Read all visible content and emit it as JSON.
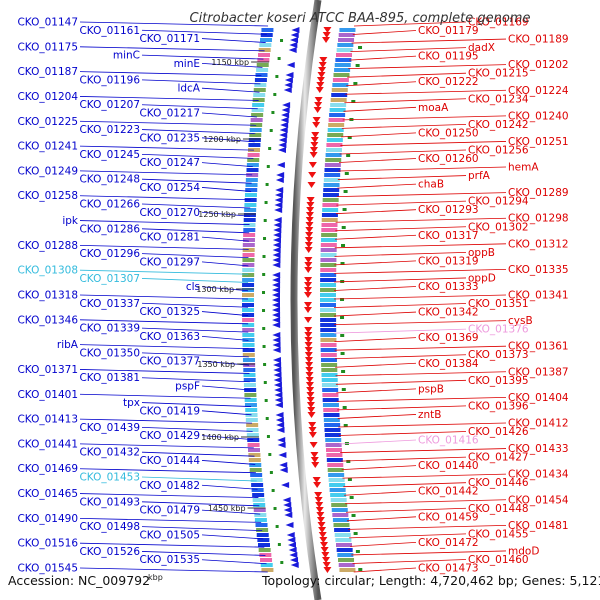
{
  "header": {
    "title": "Citrobacter koseri ATCC BAA-895, complete genome"
  },
  "footer": {
    "accession": "Accession: NC_009792",
    "topology": "Topology: circular; Length: 4,720,462 bp; Genes: 5,121",
    "kbp_unit": "kbp"
  },
  "colors": {
    "left_genes": "#0000cc",
    "right_genes": "#dd0000",
    "left_highlight": "#33bbdd",
    "right_highlight": "#ee99dd",
    "backbone": "#666666"
  },
  "scale": {
    "ticks": [
      {
        "label": "1150 kbp"
      },
      {
        "label": "1200 kbp"
      },
      {
        "label": "1250 kbp"
      },
      {
        "label": "1300 kbp"
      },
      {
        "label": "1350 kbp"
      },
      {
        "label": "1400 kbp"
      },
      {
        "label": "1450 kbp"
      }
    ]
  },
  "left_labels": [
    {
      "text": "CKO_01147",
      "color": "blue"
    },
    {
      "text": "CKO_01161",
      "color": "blue"
    },
    {
      "text": "CKO_01171",
      "color": "blue"
    },
    {
      "text": "CKO_01175",
      "color": "blue"
    },
    {
      "text": "minC",
      "color": "blue"
    },
    {
      "text": "minE",
      "color": "blue"
    },
    {
      "text": "CKO_01187",
      "color": "blue"
    },
    {
      "text": "CKO_01196",
      "color": "blue"
    },
    {
      "text": "ldcA",
      "color": "blue"
    },
    {
      "text": "CKO_01204",
      "color": "blue"
    },
    {
      "text": "CKO_01207",
      "color": "blue"
    },
    {
      "text": "CKO_01217",
      "color": "blue"
    },
    {
      "text": "CKO_01225",
      "color": "blue"
    },
    {
      "text": "CKO_01223",
      "color": "blue"
    },
    {
      "text": "CKO_01235",
      "color": "blue"
    },
    {
      "text": "CKO_01241",
      "color": "blue"
    },
    {
      "text": "CKO_01245",
      "color": "blue"
    },
    {
      "text": "CKO_01247",
      "color": "blue"
    },
    {
      "text": "CKO_01249",
      "color": "blue"
    },
    {
      "text": "CKO_01248",
      "color": "blue"
    },
    {
      "text": "CKO_01254",
      "color": "blue"
    },
    {
      "text": "CKO_01258",
      "color": "blue"
    },
    {
      "text": "CKO_01266",
      "color": "blue"
    },
    {
      "text": "CKO_01270",
      "color": "blue"
    },
    {
      "text": "ipk",
      "color": "blue"
    },
    {
      "text": "CKO_01286",
      "color": "blue"
    },
    {
      "text": "CKO_01281",
      "color": "blue"
    },
    {
      "text": "CKO_01288",
      "color": "blue"
    },
    {
      "text": "CKO_01296",
      "color": "blue"
    },
    {
      "text": "CKO_01297",
      "color": "blue"
    },
    {
      "text": "CKO_01308",
      "color": "cyan"
    },
    {
      "text": "CKO_01307",
      "color": "cyan"
    },
    {
      "text": "cls",
      "color": "blue"
    },
    {
      "text": "CKO_01318",
      "color": "blue"
    },
    {
      "text": "CKO_01337",
      "color": "blue"
    },
    {
      "text": "CKO_01325",
      "color": "blue"
    },
    {
      "text": "CKO_01346",
      "color": "blue"
    },
    {
      "text": "CKO_01339",
      "color": "blue"
    },
    {
      "text": "CKO_01363",
      "color": "blue"
    },
    {
      "text": "ribA",
      "color": "blue"
    },
    {
      "text": "CKO_01350",
      "color": "blue"
    },
    {
      "text": "CKO_01377",
      "color": "blue"
    },
    {
      "text": "CKO_01371",
      "color": "blue"
    },
    {
      "text": "CKO_01381",
      "color": "blue"
    },
    {
      "text": "pspF",
      "color": "blue"
    },
    {
      "text": "CKO_01401",
      "color": "blue"
    },
    {
      "text": "tpx",
      "color": "blue"
    },
    {
      "text": "CKO_01419",
      "color": "blue"
    },
    {
      "text": "CKO_01413",
      "color": "blue"
    },
    {
      "text": "CKO_01439",
      "color": "blue"
    },
    {
      "text": "CKO_01429",
      "color": "blue"
    },
    {
      "text": "CKO_01441",
      "color": "blue"
    },
    {
      "text": "CKO_01432",
      "color": "blue"
    },
    {
      "text": "CKO_01444",
      "color": "blue"
    },
    {
      "text": "CKO_01469",
      "color": "blue"
    },
    {
      "text": "CKO_01453",
      "color": "cyan"
    },
    {
      "text": "CKO_01482",
      "color": "blue"
    },
    {
      "text": "CKO_01465",
      "color": "blue"
    },
    {
      "text": "CKO_01493",
      "color": "blue"
    },
    {
      "text": "CKO_01479",
      "color": "blue"
    },
    {
      "text": "CKO_01490",
      "color": "blue"
    },
    {
      "text": "CKO_01498",
      "color": "blue"
    },
    {
      "text": "CKO_01505",
      "color": "blue"
    },
    {
      "text": "CKO_01516",
      "color": "blue"
    },
    {
      "text": "CKO_01526",
      "color": "blue"
    },
    {
      "text": "CKO_01535",
      "color": "blue"
    },
    {
      "text": "CKO_01545",
      "color": "blue"
    }
  ],
  "right_labels": [
    {
      "text": "CKO_01169",
      "color": "red"
    },
    {
      "text": "CKO_01179",
      "color": "red"
    },
    {
      "text": "CKO_01189",
      "color": "red"
    },
    {
      "text": "dadX",
      "color": "red"
    },
    {
      "text": "CKO_01195",
      "color": "red"
    },
    {
      "text": "CKO_01202",
      "color": "red"
    },
    {
      "text": "CKO_01215",
      "color": "red"
    },
    {
      "text": "CKO_01222",
      "color": "red"
    },
    {
      "text": "CKO_01224",
      "color": "red"
    },
    {
      "text": "CKO_01234",
      "color": "red"
    },
    {
      "text": "moaA",
      "color": "red"
    },
    {
      "text": "CKO_01240",
      "color": "red"
    },
    {
      "text": "CKO_01242",
      "color": "red"
    },
    {
      "text": "CKO_01250",
      "color": "red"
    },
    {
      "text": "CKO_01251",
      "color": "red"
    },
    {
      "text": "CKO_01256",
      "color": "red"
    },
    {
      "text": "CKO_01260",
      "color": "red"
    },
    {
      "text": "hemA",
      "color": "red"
    },
    {
      "text": "prfA",
      "color": "red"
    },
    {
      "text": "chaB",
      "color": "red"
    },
    {
      "text": "CKO_01289",
      "color": "red"
    },
    {
      "text": "CKO_01294",
      "color": "red"
    },
    {
      "text": "CKO_01293",
      "color": "red"
    },
    {
      "text": "CKO_01298",
      "color": "red"
    },
    {
      "text": "CKO_01302",
      "color": "red"
    },
    {
      "text": "CKO_01317",
      "color": "red"
    },
    {
      "text": "CKO_01312",
      "color": "red"
    },
    {
      "text": "oppB",
      "color": "red"
    },
    {
      "text": "CKO_01319",
      "color": "red"
    },
    {
      "text": "CKO_01335",
      "color": "red"
    },
    {
      "text": "oppD",
      "color": "red"
    },
    {
      "text": "CKO_01333",
      "color": "red"
    },
    {
      "text": "CKO_01341",
      "color": "red"
    },
    {
      "text": "CKO_01351",
      "color": "red"
    },
    {
      "text": "CKO_01342",
      "color": "red"
    },
    {
      "text": "cysB",
      "color": "red"
    },
    {
      "text": "CKO_01376",
      "color": "pink"
    },
    {
      "text": "CKO_01369",
      "color": "red"
    },
    {
      "text": "CKO_01361",
      "color": "red"
    },
    {
      "text": "CKO_01373",
      "color": "red"
    },
    {
      "text": "CKO_01384",
      "color": "red"
    },
    {
      "text": "CKO_01387",
      "color": "red"
    },
    {
      "text": "CKO_01395",
      "color": "red"
    },
    {
      "text": "pspB",
      "color": "red"
    },
    {
      "text": "CKO_01404",
      "color": "red"
    },
    {
      "text": "CKO_01396",
      "color": "red"
    },
    {
      "text": "zntB",
      "color": "red"
    },
    {
      "text": "CKO_01412",
      "color": "red"
    },
    {
      "text": "CKO_01426",
      "color": "red"
    },
    {
      "text": "CKO_01416",
      "color": "pink"
    },
    {
      "text": "CKO_01433",
      "color": "red"
    },
    {
      "text": "CKO_01427",
      "color": "red"
    },
    {
      "text": "CKO_01440",
      "color": "red"
    },
    {
      "text": "CKO_01434",
      "color": "red"
    },
    {
      "text": "CKO_01446",
      "color": "red"
    },
    {
      "text": "CKO_01442",
      "color": "red"
    },
    {
      "text": "CKO_01454",
      "color": "red"
    },
    {
      "text": "CKO_01448",
      "color": "red"
    },
    {
      "text": "CKO_01459",
      "color": "red"
    },
    {
      "text": "CKO_01481",
      "color": "red"
    },
    {
      "text": "CKO_01455",
      "color": "red"
    },
    {
      "text": "CKO_01472",
      "color": "red"
    },
    {
      "text": "mdoD",
      "color": "red"
    },
    {
      "text": "CKO_01460",
      "color": "red"
    },
    {
      "text": "CKO_01473",
      "color": "red"
    }
  ]
}
